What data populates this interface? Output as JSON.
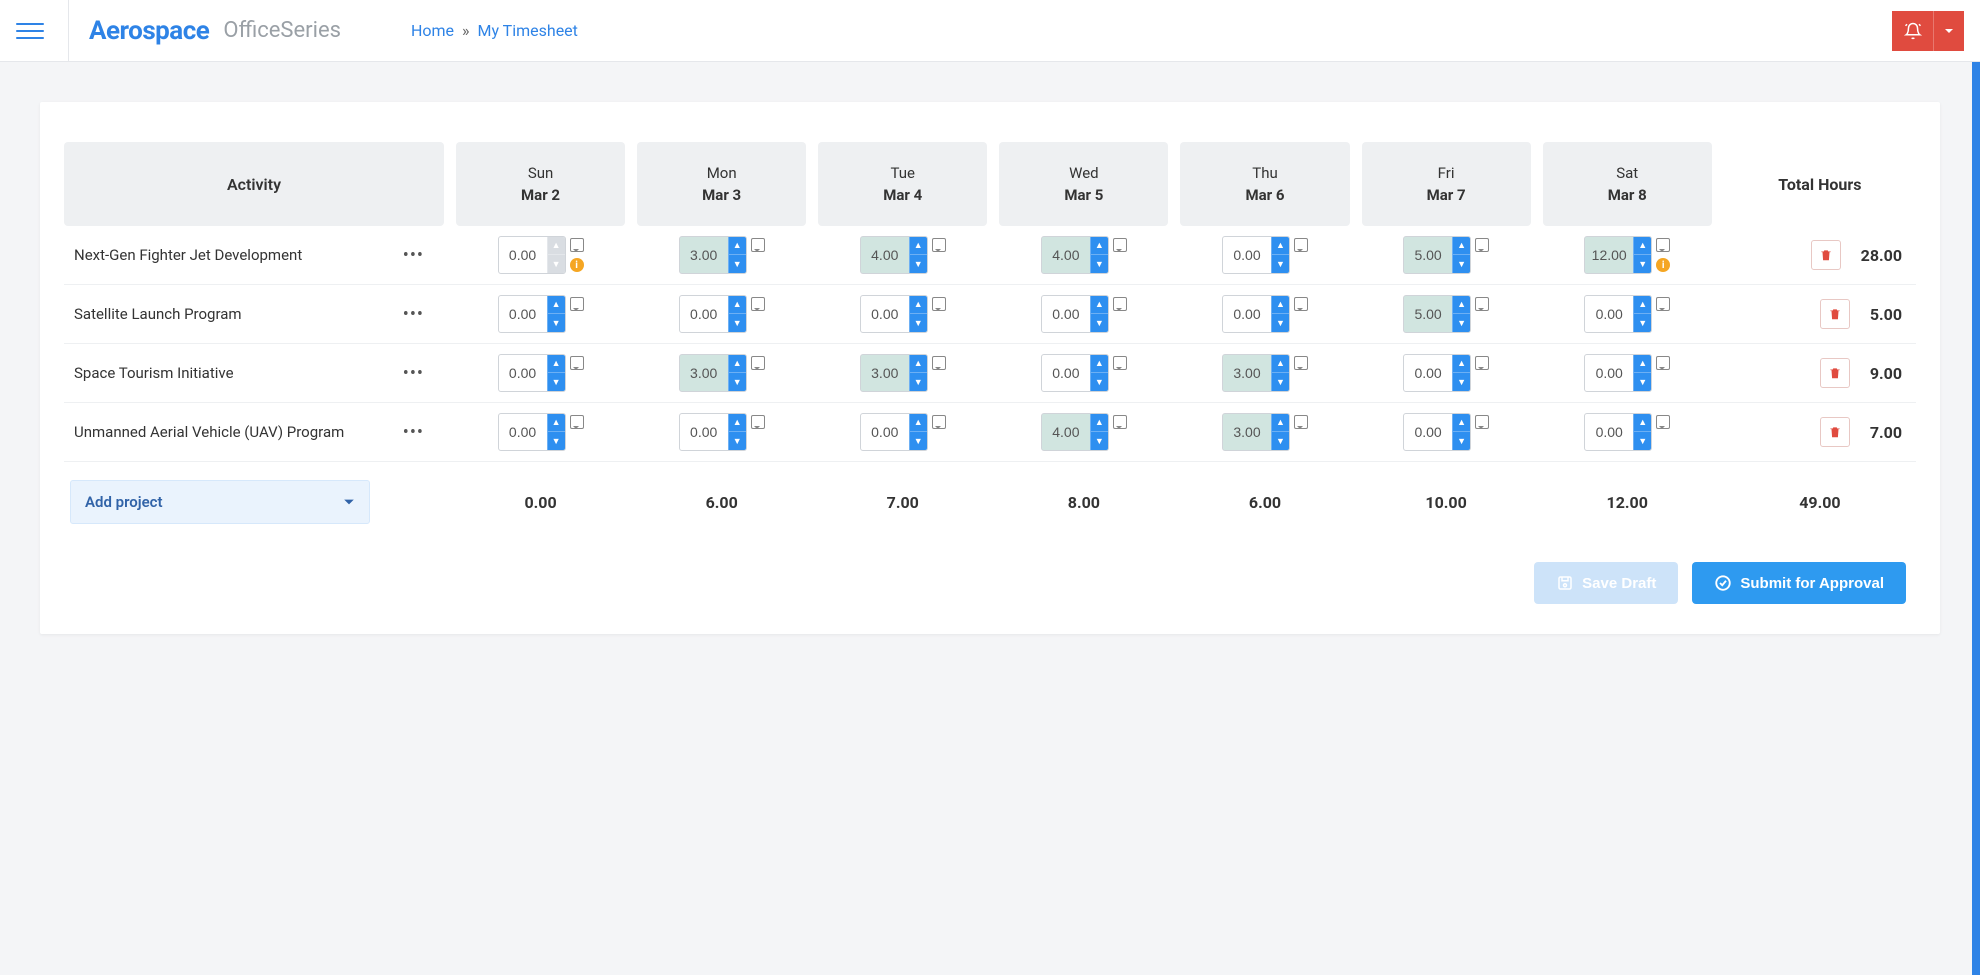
{
  "header": {
    "brand_main": "Aerospace",
    "brand_sub": "OfficeSeries",
    "breadcrumb_home": "Home",
    "breadcrumb_sep": "»",
    "breadcrumb_current": "My Timesheet"
  },
  "table": {
    "activity_header": "Activity",
    "total_header": "Total Hours",
    "days": [
      {
        "dow": "Sun",
        "date": "Mar 2"
      },
      {
        "dow": "Mon",
        "date": "Mar 3"
      },
      {
        "dow": "Tue",
        "date": "Mar 4"
      },
      {
        "dow": "Wed",
        "date": "Mar 5"
      },
      {
        "dow": "Thu",
        "date": "Mar 6"
      },
      {
        "dow": "Fri",
        "date": "Mar 7"
      },
      {
        "dow": "Sat",
        "date": "Mar 8"
      }
    ],
    "rows": [
      {
        "name": "Next-Gen Fighter Jet Development",
        "cells": [
          {
            "v": "0.00",
            "filled": false,
            "disabled": true,
            "warn": true
          },
          {
            "v": "3.00",
            "filled": true
          },
          {
            "v": "4.00",
            "filled": true
          },
          {
            "v": "4.00",
            "filled": true
          },
          {
            "v": "0.00",
            "filled": false
          },
          {
            "v": "5.00",
            "filled": true
          },
          {
            "v": "12.00",
            "filled": true,
            "warn": true
          }
        ],
        "total": "28.00"
      },
      {
        "name": "Satellite Launch Program",
        "cells": [
          {
            "v": "0.00"
          },
          {
            "v": "0.00"
          },
          {
            "v": "0.00"
          },
          {
            "v": "0.00"
          },
          {
            "v": "0.00"
          },
          {
            "v": "5.00",
            "filled": true
          },
          {
            "v": "0.00"
          }
        ],
        "total": "5.00"
      },
      {
        "name": "Space Tourism Initiative",
        "cells": [
          {
            "v": "0.00"
          },
          {
            "v": "3.00",
            "filled": true
          },
          {
            "v": "3.00",
            "filled": true
          },
          {
            "v": "0.00"
          },
          {
            "v": "3.00",
            "filled": true
          },
          {
            "v": "0.00"
          },
          {
            "v": "0.00"
          }
        ],
        "total": "9.00"
      },
      {
        "name": "Unmanned Aerial Vehicle (UAV) Program",
        "cells": [
          {
            "v": "0.00"
          },
          {
            "v": "0.00"
          },
          {
            "v": "0.00"
          },
          {
            "v": "4.00",
            "filled": true
          },
          {
            "v": "3.00",
            "filled": true
          },
          {
            "v": "0.00"
          },
          {
            "v": "0.00"
          }
        ],
        "total": "7.00"
      }
    ],
    "day_totals": [
      "0.00",
      "6.00",
      "7.00",
      "8.00",
      "6.00",
      "10.00",
      "12.00"
    ],
    "grand_total": "49.00",
    "add_project_label": "Add project"
  },
  "actions": {
    "save_draft": "Save Draft",
    "submit": "Submit for Approval"
  },
  "colors": {
    "primary": "#2e83e6",
    "danger": "#e04b3f",
    "spinner": "#2e8ff0",
    "filled_cell": "#d1e5e0",
    "warn": "#f5a623"
  }
}
